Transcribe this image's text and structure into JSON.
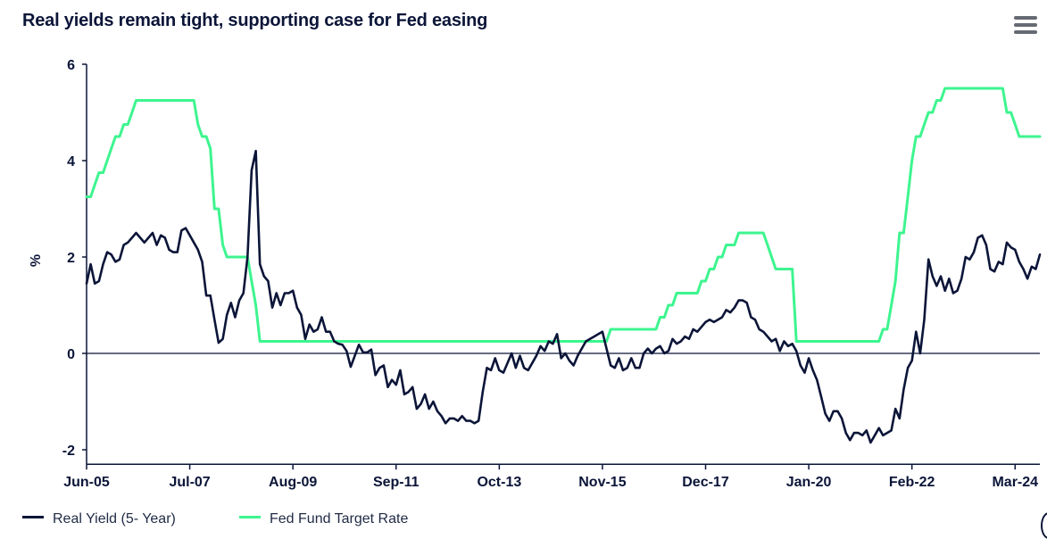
{
  "title": "Real yields remain tight, supporting case for Fed easing",
  "menu_icon": "hamburger-icon",
  "legend": {
    "items": [
      {
        "label": "Real Yield (5- Year)",
        "color": "#0b1538"
      },
      {
        "label": "Fed Fund Target Rate",
        "color": "#3df58f"
      }
    ]
  },
  "chart_data": {
    "type": "line",
    "title": "Real yields remain tight, supporting case for Fed easing",
    "xlabel": "",
    "ylabel": "%",
    "ylim": [
      -2.3,
      6
    ],
    "yticks": [
      -2,
      0,
      2,
      4,
      6
    ],
    "xlim": [
      0,
      231
    ],
    "x_unit": "months since Jun-05",
    "xticks": [
      {
        "pos": 0,
        "label": "Jun-05"
      },
      {
        "pos": 25,
        "label": "Jul-07"
      },
      {
        "pos": 50,
        "label": "Aug-09"
      },
      {
        "pos": 75,
        "label": "Sep-11"
      },
      {
        "pos": 100,
        "label": "Oct-13"
      },
      {
        "pos": 125,
        "label": "Nov-15"
      },
      {
        "pos": 150,
        "label": "Dec-17"
      },
      {
        "pos": 175,
        "label": "Jan-20"
      },
      {
        "pos": 200,
        "label": "Feb-22"
      },
      {
        "pos": 225,
        "label": "Mar-24"
      }
    ],
    "grid": false,
    "legend_position": "bottom-left",
    "series": [
      {
        "name": "Real Yield (5- Year)",
        "color": "#0b1538",
        "points": [
          [
            0,
            1.45
          ],
          [
            1,
            1.85
          ],
          [
            2,
            1.45
          ],
          [
            3,
            1.5
          ],
          [
            4,
            1.85
          ],
          [
            5,
            2.1
          ],
          [
            6,
            2.05
          ],
          [
            7,
            1.9
          ],
          [
            8,
            1.95
          ],
          [
            9,
            2.25
          ],
          [
            10,
            2.3
          ],
          [
            11,
            2.4
          ],
          [
            12,
            2.5
          ],
          [
            13,
            2.4
          ],
          [
            14,
            2.3
          ],
          [
            15,
            2.4
          ],
          [
            16,
            2.5
          ],
          [
            17,
            2.25
          ],
          [
            18,
            2.45
          ],
          [
            19,
            2.4
          ],
          [
            20,
            2.15
          ],
          [
            21,
            2.1
          ],
          [
            22,
            2.1
          ],
          [
            23,
            2.55
          ],
          [
            24,
            2.6
          ],
          [
            25,
            2.45
          ],
          [
            26,
            2.3
          ],
          [
            27,
            2.15
          ],
          [
            28,
            1.9
          ],
          [
            29,
            1.2
          ],
          [
            30,
            1.2
          ],
          [
            31,
            0.7
          ],
          [
            32,
            0.22
          ],
          [
            33,
            0.3
          ],
          [
            34,
            0.8
          ],
          [
            35,
            1.05
          ],
          [
            36,
            0.75
          ],
          [
            37,
            1.1
          ],
          [
            38,
            1.25
          ],
          [
            39,
            2.0
          ],
          [
            40,
            3.8
          ],
          [
            41,
            4.2
          ],
          [
            42,
            1.85
          ],
          [
            43,
            1.6
          ],
          [
            44,
            1.5
          ],
          [
            45,
            0.95
          ],
          [
            46,
            1.25
          ],
          [
            47,
            1.0
          ],
          [
            48,
            1.25
          ],
          [
            49,
            1.25
          ],
          [
            50,
            1.3
          ],
          [
            51,
            0.95
          ],
          [
            52,
            0.8
          ],
          [
            53,
            0.3
          ],
          [
            54,
            0.6
          ],
          [
            55,
            0.45
          ],
          [
            56,
            0.5
          ],
          [
            57,
            0.75
          ],
          [
            58,
            0.45
          ],
          [
            59,
            0.45
          ],
          [
            60,
            0.25
          ],
          [
            61,
            0.2
          ],
          [
            62,
            0.18
          ],
          [
            63,
            0.05
          ],
          [
            64,
            -0.28
          ],
          [
            65,
            -0.05
          ],
          [
            66,
            0.18
          ],
          [
            67,
            0.02
          ],
          [
            68,
            0.02
          ],
          [
            69,
            0.08
          ],
          [
            70,
            -0.45
          ],
          [
            71,
            -0.3
          ],
          [
            72,
            -0.25
          ],
          [
            73,
            -0.7
          ],
          [
            74,
            -0.55
          ],
          [
            75,
            -0.65
          ],
          [
            76,
            -0.35
          ],
          [
            77,
            -0.85
          ],
          [
            78,
            -0.8
          ],
          [
            79,
            -0.7
          ],
          [
            80,
            -1.15
          ],
          [
            81,
            -1.05
          ],
          [
            82,
            -0.85
          ],
          [
            83,
            -1.15
          ],
          [
            84,
            -1.0
          ],
          [
            85,
            -1.2
          ],
          [
            86,
            -1.3
          ],
          [
            87,
            -1.45
          ],
          [
            88,
            -1.35
          ],
          [
            89,
            -1.35
          ],
          [
            90,
            -1.4
          ],
          [
            91,
            -1.3
          ],
          [
            92,
            -1.4
          ],
          [
            93,
            -1.4
          ],
          [
            94,
            -1.45
          ],
          [
            95,
            -1.4
          ],
          [
            96,
            -0.8
          ],
          [
            97,
            -0.3
          ],
          [
            98,
            -0.35
          ],
          [
            99,
            -0.1
          ],
          [
            100,
            -0.35
          ],
          [
            101,
            -0.4
          ],
          [
            102,
            -0.2
          ],
          [
            103,
            0.0
          ],
          [
            104,
            -0.3
          ],
          [
            105,
            -0.05
          ],
          [
            106,
            -0.3
          ],
          [
            107,
            -0.35
          ],
          [
            108,
            -0.2
          ],
          [
            109,
            -0.05
          ],
          [
            110,
            0.15
          ],
          [
            111,
            0.05
          ],
          [
            112,
            0.25
          ],
          [
            113,
            0.2
          ],
          [
            114,
            0.4
          ],
          [
            115,
            -0.1
          ],
          [
            116,
            0.0
          ],
          [
            117,
            -0.15
          ],
          [
            118,
            -0.25
          ],
          [
            119,
            -0.05
          ],
          [
            120,
            0.1
          ],
          [
            121,
            0.25
          ],
          [
            122,
            0.3
          ],
          [
            123,
            0.35
          ],
          [
            124,
            0.4
          ],
          [
            125,
            0.45
          ],
          [
            126,
            0.1
          ],
          [
            127,
            -0.25
          ],
          [
            128,
            -0.3
          ],
          [
            129,
            -0.1
          ],
          [
            130,
            -0.35
          ],
          [
            131,
            -0.3
          ],
          [
            132,
            -0.1
          ],
          [
            133,
            -0.3
          ],
          [
            134,
            -0.3
          ],
          [
            135,
            0.0
          ],
          [
            136,
            0.1
          ],
          [
            137,
            0.0
          ],
          [
            138,
            0.1
          ],
          [
            139,
            0.15
          ],
          [
            140,
            0.0
          ],
          [
            141,
            0.05
          ],
          [
            142,
            0.3
          ],
          [
            143,
            0.2
          ],
          [
            144,
            0.25
          ],
          [
            145,
            0.35
          ],
          [
            146,
            0.3
          ],
          [
            147,
            0.5
          ],
          [
            148,
            0.45
          ],
          [
            149,
            0.55
          ],
          [
            150,
            0.65
          ],
          [
            151,
            0.7
          ],
          [
            152,
            0.65
          ],
          [
            153,
            0.7
          ],
          [
            154,
            0.75
          ],
          [
            155,
            0.9
          ],
          [
            156,
            0.85
          ],
          [
            157,
            0.95
          ],
          [
            158,
            1.1
          ],
          [
            159,
            1.1
          ],
          [
            160,
            1.05
          ],
          [
            161,
            0.75
          ],
          [
            162,
            0.7
          ],
          [
            163,
            0.5
          ],
          [
            164,
            0.45
          ],
          [
            165,
            0.35
          ],
          [
            166,
            0.25
          ],
          [
            167,
            0.3
          ],
          [
            168,
            0.05
          ],
          [
            169,
            0.25
          ],
          [
            170,
            0.15
          ],
          [
            171,
            0.2
          ],
          [
            172,
            0.05
          ],
          [
            173,
            -0.25
          ],
          [
            174,
            -0.4
          ],
          [
            175,
            -0.1
          ],
          [
            176,
            -0.35
          ],
          [
            177,
            -0.55
          ],
          [
            178,
            -0.9
          ],
          [
            179,
            -1.25
          ],
          [
            180,
            -1.4
          ],
          [
            181,
            -1.2
          ],
          [
            182,
            -1.2
          ],
          [
            183,
            -1.35
          ],
          [
            184,
            -1.65
          ],
          [
            185,
            -1.8
          ],
          [
            186,
            -1.65
          ],
          [
            187,
            -1.65
          ],
          [
            188,
            -1.7
          ],
          [
            189,
            -1.6
          ],
          [
            190,
            -1.85
          ],
          [
            191,
            -1.7
          ],
          [
            192,
            -1.55
          ],
          [
            193,
            -1.7
          ],
          [
            194,
            -1.65
          ],
          [
            195,
            -1.6
          ],
          [
            196,
            -1.15
          ],
          [
            197,
            -1.35
          ],
          [
            198,
            -0.75
          ],
          [
            199,
            -0.3
          ],
          [
            200,
            -0.15
          ],
          [
            201,
            0.45
          ],
          [
            202,
            0.0
          ],
          [
            203,
            0.7
          ],
          [
            204,
            1.95
          ],
          [
            205,
            1.6
          ],
          [
            206,
            1.4
          ],
          [
            207,
            1.6
          ],
          [
            208,
            1.3
          ],
          [
            209,
            1.55
          ],
          [
            210,
            1.25
          ],
          [
            211,
            1.3
          ],
          [
            212,
            1.55
          ],
          [
            213,
            2.0
          ],
          [
            214,
            1.95
          ],
          [
            215,
            2.1
          ],
          [
            216,
            2.4
          ],
          [
            217,
            2.45
          ],
          [
            218,
            2.25
          ],
          [
            219,
            1.75
          ],
          [
            220,
            1.7
          ],
          [
            221,
            1.9
          ],
          [
            222,
            1.85
          ],
          [
            223,
            2.3
          ],
          [
            224,
            2.2
          ],
          [
            225,
            2.15
          ],
          [
            226,
            1.9
          ],
          [
            227,
            1.75
          ],
          [
            228,
            1.55
          ],
          [
            229,
            1.8
          ],
          [
            230,
            1.75
          ],
          [
            231,
            2.05
          ]
        ]
      },
      {
        "name": "Fed Fund Target Rate",
        "color": "#3df58f",
        "points": [
          [
            0,
            3.25
          ],
          [
            1,
            3.25
          ],
          [
            2,
            3.5
          ],
          [
            3,
            3.75
          ],
          [
            4,
            3.75
          ],
          [
            5,
            4.0
          ],
          [
            6,
            4.25
          ],
          [
            7,
            4.5
          ],
          [
            8,
            4.5
          ],
          [
            9,
            4.75
          ],
          [
            10,
            4.75
          ],
          [
            11,
            5.0
          ],
          [
            12,
            5.25
          ],
          [
            26,
            5.25
          ],
          [
            27,
            4.75
          ],
          [
            28,
            4.5
          ],
          [
            29,
            4.5
          ],
          [
            30,
            4.25
          ],
          [
            31,
            3.0
          ],
          [
            32,
            3.0
          ],
          [
            33,
            2.25
          ],
          [
            34,
            2.0
          ],
          [
            39,
            2.0
          ],
          [
            40,
            1.5
          ],
          [
            41,
            1.0
          ],
          [
            42,
            0.25
          ],
          [
            126,
            0.25
          ],
          [
            127,
            0.5
          ],
          [
            138,
            0.5
          ],
          [
            139,
            0.75
          ],
          [
            140,
            0.75
          ],
          [
            141,
            1.0
          ],
          [
            142,
            1.0
          ],
          [
            143,
            1.25
          ],
          [
            148,
            1.25
          ],
          [
            149,
            1.5
          ],
          [
            150,
            1.5
          ],
          [
            151,
            1.75
          ],
          [
            152,
            1.75
          ],
          [
            153,
            2.0
          ],
          [
            154,
            2.0
          ],
          [
            155,
            2.25
          ],
          [
            157,
            2.25
          ],
          [
            158,
            2.5
          ],
          [
            164,
            2.5
          ],
          [
            165,
            2.25
          ],
          [
            166,
            2.0
          ],
          [
            167,
            1.75
          ],
          [
            171,
            1.75
          ],
          [
            172,
            0.25
          ],
          [
            192,
            0.25
          ],
          [
            193,
            0.5
          ],
          [
            194,
            0.5
          ],
          [
            195,
            1.0
          ],
          [
            196,
            1.5
          ],
          [
            197,
            2.5
          ],
          [
            198,
            2.5
          ],
          [
            199,
            3.25
          ],
          [
            200,
            4.0
          ],
          [
            201,
            4.5
          ],
          [
            202,
            4.5
          ],
          [
            203,
            4.75
          ],
          [
            204,
            5.0
          ],
          [
            205,
            5.0
          ],
          [
            206,
            5.25
          ],
          [
            207,
            5.25
          ],
          [
            208,
            5.5
          ],
          [
            222,
            5.5
          ],
          [
            223,
            5.0
          ],
          [
            224,
            5.0
          ],
          [
            225,
            4.75
          ],
          [
            226,
            4.5
          ],
          [
            231,
            4.5
          ]
        ]
      }
    ]
  }
}
